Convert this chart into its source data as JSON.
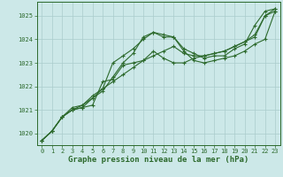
{
  "x": [
    0,
    1,
    2,
    3,
    4,
    5,
    6,
    7,
    8,
    9,
    10,
    11,
    12,
    13,
    14,
    15,
    16,
    17,
    18,
    19,
    20,
    21,
    22,
    23
  ],
  "series": [
    [
      1019.7,
      1020.1,
      1020.7,
      1021.0,
      1021.1,
      1021.5,
      1021.8,
      1022.4,
      1023.0,
      1023.4,
      1024.1,
      1024.3,
      1024.2,
      1024.1,
      1023.6,
      1023.4,
      1023.2,
      1023.3,
      1023.3,
      1023.6,
      1023.8,
      1024.6,
      1025.2,
      1025.3
    ],
    [
      1019.7,
      1020.1,
      1020.7,
      1021.0,
      1021.2,
      1021.6,
      1021.9,
      1022.2,
      1022.5,
      1022.8,
      1023.1,
      1023.3,
      1023.5,
      1023.7,
      1023.4,
      1023.3,
      1023.3,
      1023.4,
      1023.5,
      1023.7,
      1023.9,
      1024.1,
      1025.0,
      1025.3
    ],
    [
      1019.7,
      1020.1,
      1020.7,
      1021.0,
      1021.1,
      1021.2,
      1022.2,
      1022.3,
      1022.9,
      1023.0,
      1023.1,
      1023.5,
      1023.2,
      1023.0,
      1023.0,
      1023.2,
      1023.3,
      1023.4,
      1023.5,
      1023.7,
      1023.9,
      1024.2,
      1025.0,
      1025.2
    ],
    [
      1019.7,
      1020.1,
      1020.7,
      1021.1,
      1021.2,
      1021.5,
      1021.9,
      1023.0,
      1023.3,
      1023.6,
      1024.0,
      1024.3,
      1024.1,
      1024.1,
      1023.5,
      1023.1,
      1023.0,
      1023.1,
      1023.2,
      1023.3,
      1023.5,
      1023.8,
      1024.0,
      1025.2
    ]
  ],
  "line_color": "#2d6a2d",
  "marker": "+",
  "markersize": 3,
  "linewidth": 0.8,
  "bg_color": "#cce8e8",
  "grid_color": "#aacccc",
  "xlabel": "Graphe pression niveau de la mer (hPa)",
  "ylim": [
    1019.5,
    1025.6
  ],
  "xlim": [
    -0.5,
    23.5
  ],
  "yticks": [
    1020,
    1021,
    1022,
    1023,
    1024,
    1025
  ],
  "xticks": [
    0,
    1,
    2,
    3,
    4,
    5,
    6,
    7,
    8,
    9,
    10,
    11,
    12,
    13,
    14,
    15,
    16,
    17,
    18,
    19,
    20,
    21,
    22,
    23
  ],
  "tick_fontsize": 5,
  "xlabel_fontsize": 6.5
}
